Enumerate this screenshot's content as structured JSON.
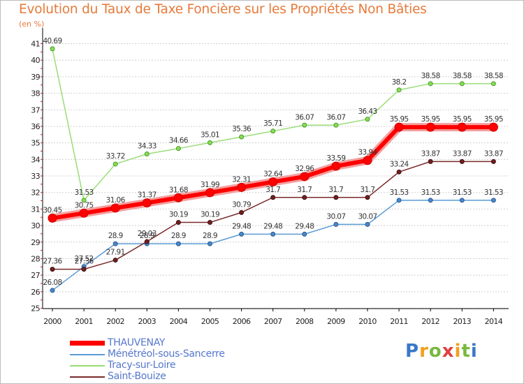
{
  "title": "Evolution du Taux de Taxe Foncière sur les Propriétés Non Bâties",
  "unit": "(en %)",
  "logo": {
    "text": "Proxiti",
    "colors": [
      "#3a78c8",
      "#f0a020",
      "#7ab840",
      "#e04040",
      "#f0a020",
      "#7ab840",
      "#3a78c8"
    ]
  },
  "chart_data": {
    "type": "line",
    "title": "Evolution du Taux de Taxe Foncière sur les Propriétés Non Bâties",
    "ylabel": "(en %)",
    "xlabel": "",
    "x": [
      "2000",
      "2001",
      "2002",
      "2003",
      "2004",
      "2005",
      "2006",
      "2007",
      "2008",
      "2009",
      "2010",
      "2011",
      "2012",
      "2013",
      "2014"
    ],
    "ylim": [
      25,
      41
    ],
    "yticks": [
      "25",
      "26",
      "27",
      "28",
      "29",
      "30",
      "31",
      "32",
      "33",
      "34",
      "35",
      "36",
      "37",
      "38",
      "39",
      "40",
      "41"
    ],
    "grid": "horizontal-dashed",
    "legend_position": "bottom-left",
    "series": [
      {
        "name": "THAUVENAY",
        "color": "#ff0000",
        "values": [
          30.45,
          30.75,
          31.06,
          31.37,
          31.68,
          31.99,
          32.31,
          32.64,
          32.96,
          33.59,
          33.94,
          35.95,
          35.95,
          35.95,
          35.95
        ],
        "labels": [
          "30.45",
          "30.75",
          "31.06",
          "31.37",
          "31.68",
          "31.99",
          "32.31",
          "32.64",
          "32.96",
          "33.59",
          "33.94",
          "35.95",
          "35.95",
          "35.95",
          "35.95"
        ]
      },
      {
        "name": "Ménétréol-sous-Sancerre",
        "color": "#5b9bd5",
        "values": [
          26.08,
          27.52,
          28.9,
          28.9,
          28.9,
          28.9,
          29.48,
          29.48,
          29.48,
          30.07,
          30.07,
          31.53,
          31.53,
          31.53,
          31.53
        ],
        "labels": [
          "26.08",
          "27.52",
          "28.9",
          "28.9",
          "28.9",
          "28.9",
          "29.48",
          "29.48",
          "29.48",
          "30.07",
          "30.07",
          "31.53",
          "31.53",
          "31.53",
          "31.53"
        ]
      },
      {
        "name": "Tracy-sur-Loire",
        "color": "#99dd77",
        "values": [
          40.69,
          31.53,
          33.72,
          34.33,
          34.66,
          35.01,
          35.36,
          35.71,
          36.07,
          36.07,
          36.43,
          38.2,
          38.58,
          38.58,
          38.58
        ],
        "labels": [
          "40.69",
          "31.53",
          "33.72",
          "34.33",
          "34.66",
          "35.01",
          "35.36",
          "35.71",
          "36.07",
          "36.07",
          "36.43",
          "38.2",
          "38.58",
          "38.58",
          "38.58"
        ]
      },
      {
        "name": "Saint-Bouize",
        "color": "#7a2a2a",
        "values": [
          27.36,
          27.36,
          27.91,
          29.03,
          30.19,
          30.19,
          30.79,
          31.7,
          31.7,
          31.7,
          31.7,
          33.24,
          33.87,
          33.87,
          33.87
        ],
        "labels": [
          "27.36",
          "27.36",
          "27.91",
          "29.03",
          "30.19",
          "30.19",
          "30.79",
          "31.7",
          "31.7",
          "31.7",
          "31.7",
          "33.24",
          "33.87",
          "33.87",
          "33.87"
        ]
      }
    ]
  }
}
